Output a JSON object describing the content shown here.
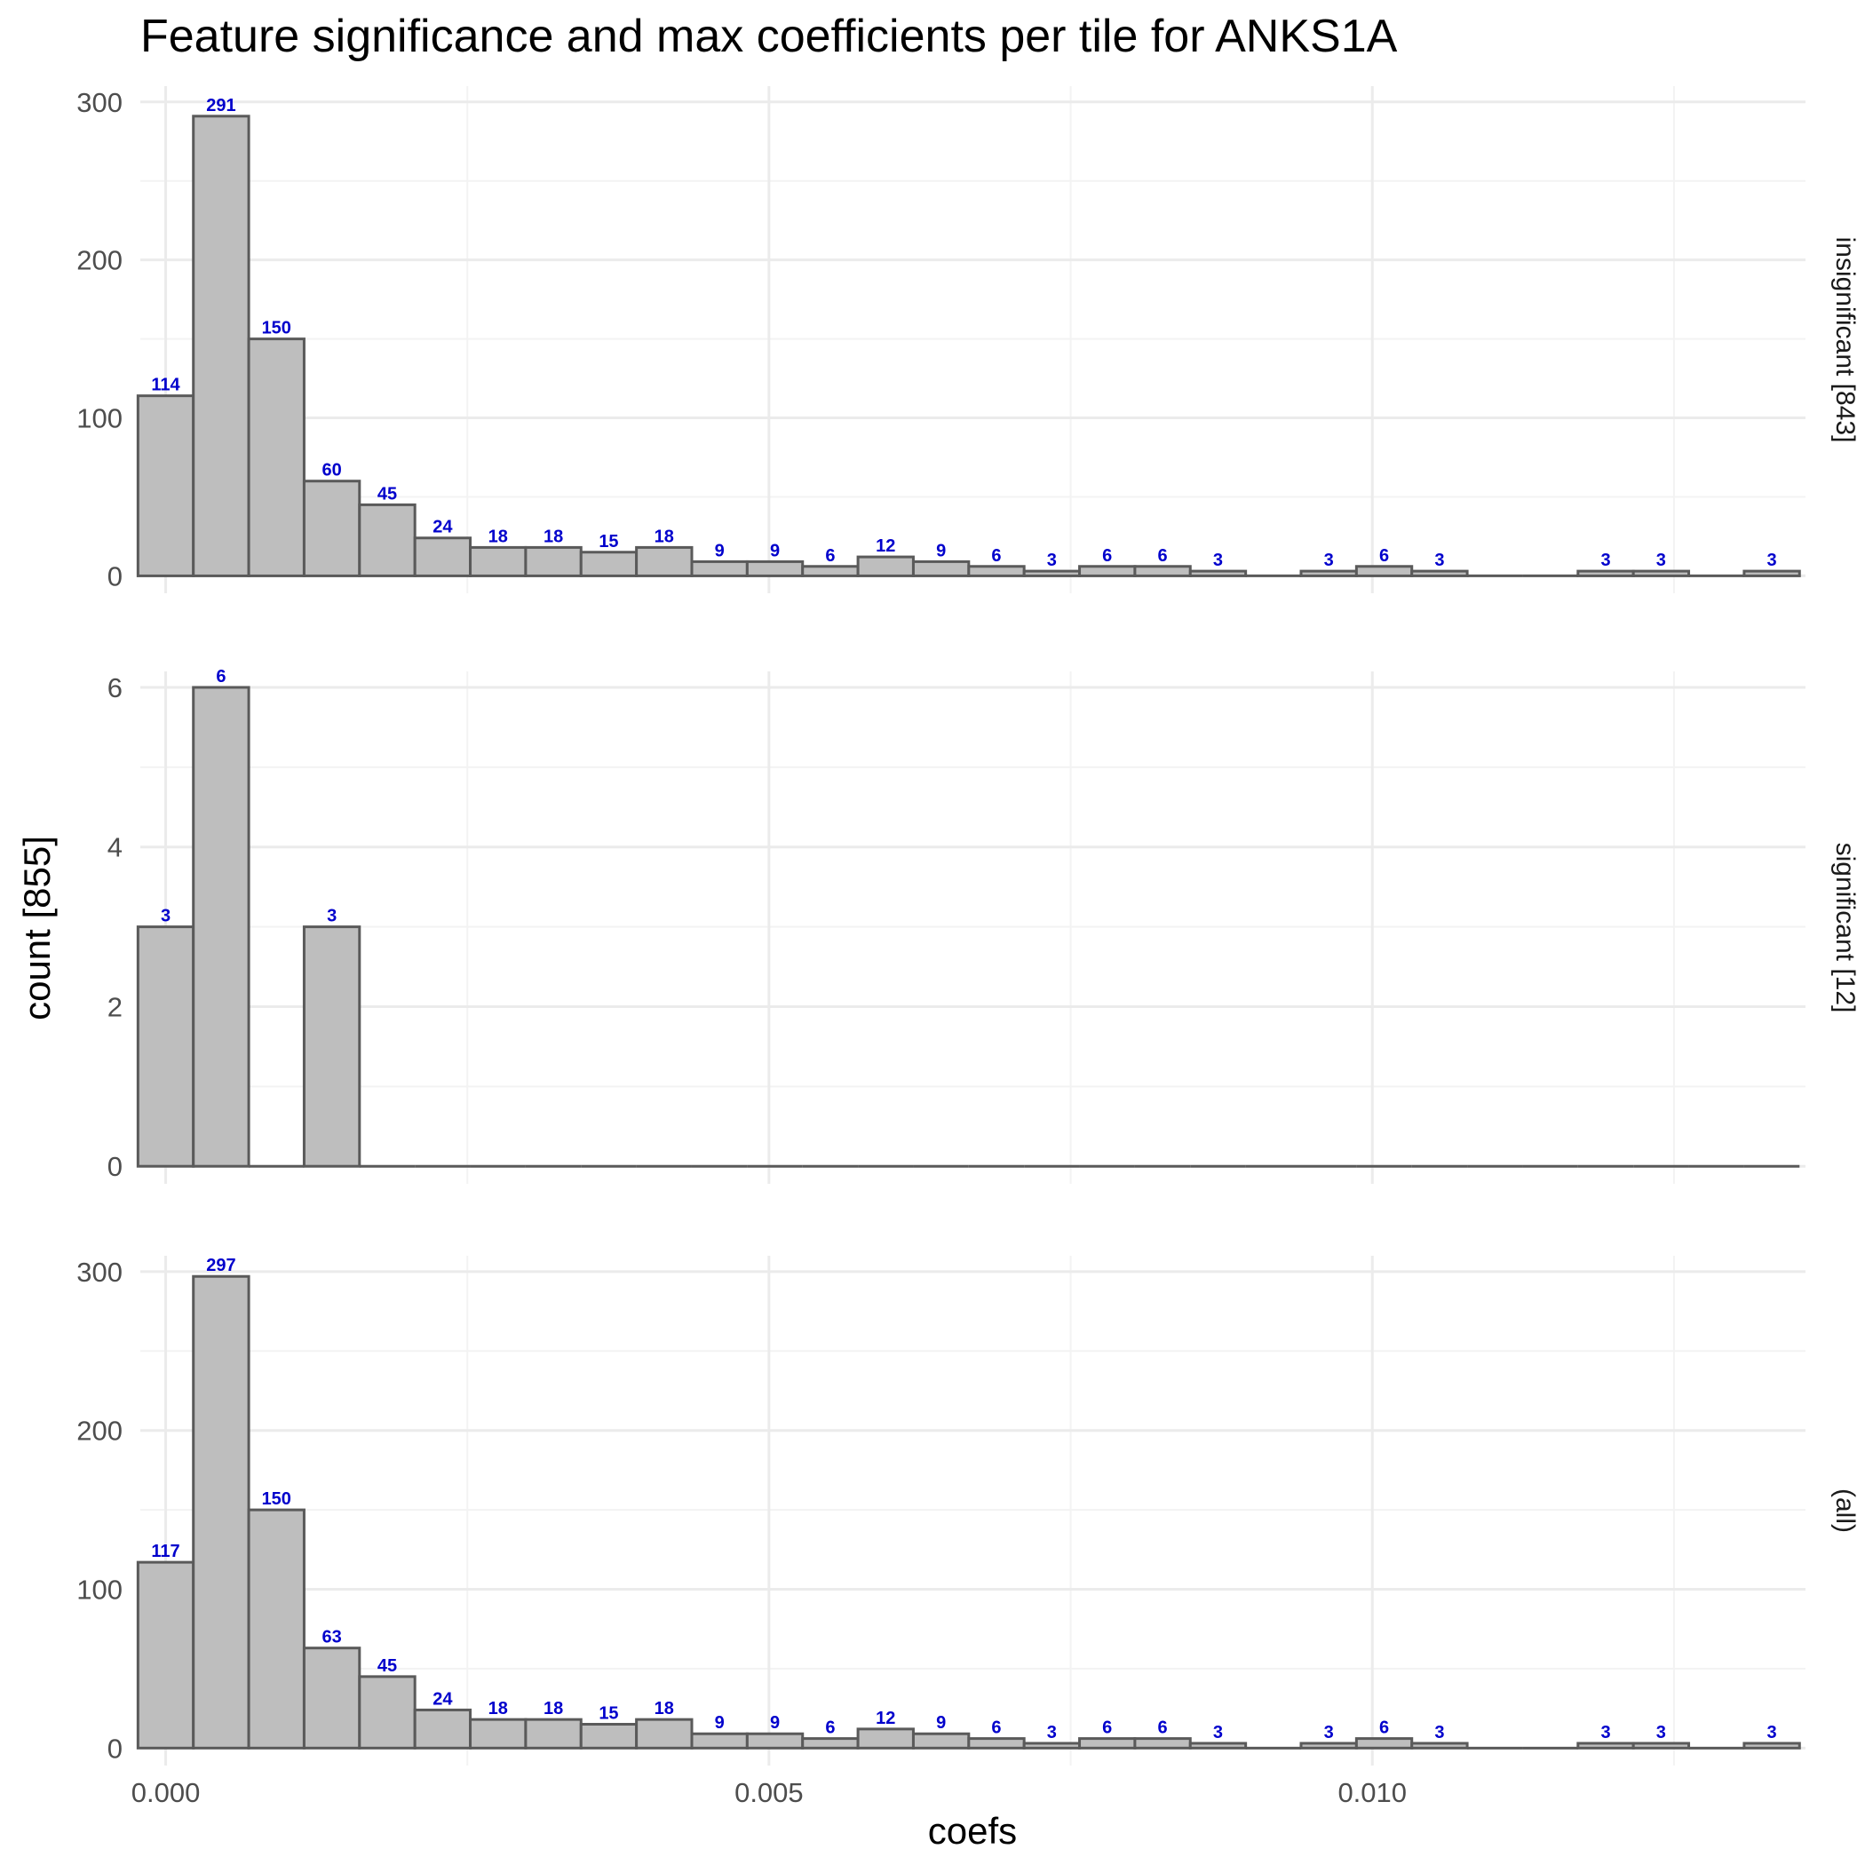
{
  "chart_data": {
    "type": "bar",
    "title": "Feature significance and max coefficients per tile for ANKS1A",
    "xlabel": "coefs",
    "ylabel": "count [855]",
    "xlim": [
      -0.00021,
      0.01359
    ],
    "x_ticks": [
      0.0,
      0.005,
      0.01
    ],
    "x_tick_labels": [
      "0.000",
      "0.005",
      "0.010"
    ],
    "bin_width": 0.000459,
    "bin_centers": [
      0.0,
      0.000459,
      0.000918,
      0.001377,
      0.001836,
      0.002295,
      0.002754,
      0.003213,
      0.003672,
      0.004131,
      0.00459,
      0.005049,
      0.005508,
      0.005967,
      0.006426,
      0.006885,
      0.007344,
      0.007803,
      0.008262,
      0.008721,
      0.00918,
      0.009639,
      0.010098,
      0.010557,
      0.011016,
      0.011475,
      0.011934,
      0.012393,
      0.012852,
      0.013311
    ],
    "grid": true,
    "panels": [
      {
        "strip": "insignificant [843]",
        "ylim": [
          -11,
          310
        ],
        "y_ticks": [
          0,
          100,
          200,
          300
        ],
        "values": [
          114,
          291,
          150,
          60,
          45,
          24,
          18,
          18,
          15,
          18,
          9,
          9,
          6,
          12,
          9,
          6,
          3,
          6,
          6,
          3,
          0,
          3,
          6,
          3,
          0,
          0,
          3,
          3,
          0,
          3
        ],
        "labels": [
          "114",
          "291",
          "150",
          "60",
          "45",
          "24",
          "18",
          "18",
          "15",
          "18",
          "9",
          "9",
          "6",
          "12",
          "9",
          "6",
          "3",
          "6",
          "6",
          "3",
          "",
          "3",
          "6",
          "3",
          "",
          "",
          "3",
          "3",
          "",
          "3"
        ]
      },
      {
        "strip": "significant [12]",
        "ylim": [
          -0.22,
          6.2
        ],
        "y_ticks": [
          0,
          2,
          4,
          6
        ],
        "values": [
          3,
          6,
          0,
          3,
          0,
          0,
          0,
          0,
          0,
          0,
          0,
          0,
          0,
          0,
          0,
          0,
          0,
          0,
          0,
          0,
          0,
          0,
          0,
          0,
          0,
          0,
          0,
          0,
          0,
          0
        ],
        "labels": [
          "3",
          "6",
          "",
          "3",
          "",
          "",
          "",
          "",
          "",
          "",
          "",
          "",
          "",
          "",
          "",
          "",
          "",
          "",
          "",
          "",
          "",
          "",
          "",
          "",
          "",
          "",
          "",
          "",
          "",
          ""
        ]
      },
      {
        "strip": "(all)",
        "ylim": [
          -11,
          310
        ],
        "y_ticks": [
          0,
          100,
          200,
          300
        ],
        "values": [
          117,
          297,
          150,
          63,
          45,
          24,
          18,
          18,
          15,
          18,
          9,
          9,
          6,
          12,
          9,
          6,
          3,
          6,
          6,
          3,
          0,
          3,
          6,
          3,
          0,
          0,
          3,
          3,
          0,
          3
        ],
        "labels": [
          "117",
          "297",
          "150",
          "63",
          "45",
          "24",
          "18",
          "18",
          "15",
          "18",
          "9",
          "9",
          "6",
          "12",
          "9",
          "6",
          "3",
          "6",
          "6",
          "3",
          "",
          "3",
          "6",
          "3",
          "",
          "",
          "3",
          "3",
          "",
          "3"
        ]
      }
    ],
    "colors": {
      "bar_fill": "#bebebe",
      "bar_outline": "#5a5a5a",
      "label_text": "#0000cc",
      "grid": "#ebebeb"
    }
  }
}
